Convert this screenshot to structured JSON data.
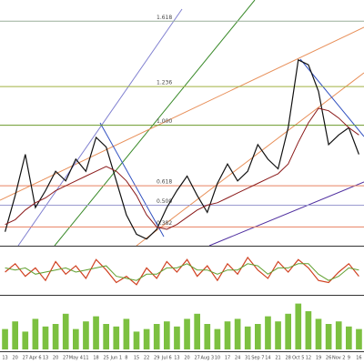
{
  "chart_data": [
    {
      "type": "line",
      "categories": [
        "13",
        "20",
        "27",
        "Apr 6",
        "13",
        "20",
        "27",
        "May 4",
        "11",
        "18",
        "25",
        "Jun 1",
        "8",
        "15",
        "22",
        "29",
        "Jul 6",
        "13",
        "20",
        "27",
        "Aug 3",
        "10",
        "17",
        "24",
        "31",
        "Sep 7",
        "14",
        "21",
        "28",
        "Oct 5",
        "12",
        "19",
        "26",
        "Nov 2",
        "9",
        "16"
      ],
      "ylim": [
        0,
        100
      ],
      "series": [
        {
          "name": "Price",
          "color": "#111111",
          "values": [
            5,
            20,
            37,
            15,
            22,
            30,
            26,
            35,
            30,
            44,
            40,
            26,
            12,
            4,
            2,
            6,
            15,
            22,
            28,
            20,
            13,
            25,
            33,
            26,
            30,
            41,
            35,
            31,
            48,
            76,
            74,
            63,
            41,
            45,
            48,
            37
          ]
        },
        {
          "name": "MA",
          "color": "#8b1a1a",
          "values": [
            8,
            10,
            14,
            17,
            19,
            22,
            24,
            26,
            28,
            30,
            32,
            30,
            26,
            20,
            12,
            7,
            6,
            8,
            11,
            14,
            16,
            17,
            19,
            21,
            23,
            25,
            27,
            29,
            33,
            42,
            50,
            56,
            55,
            52,
            48,
            45
          ]
        }
      ],
      "annotations": [
        {
          "text": "1.618",
          "y": 92,
          "color": "#9aaf9a"
        },
        {
          "text": "1.236",
          "y": 65,
          "color": "#a0b040"
        },
        {
          "text": "1.000",
          "y": 49,
          "color": "#6a9a2a"
        },
        {
          "text": "0.618",
          "y": 24,
          "color": "#e88060"
        },
        {
          "text": "0.500",
          "y": 16,
          "color": "#9a9ad0"
        },
        {
          "text": "0.382",
          "y": 7,
          "color": "#e88060"
        }
      ]
    },
    {
      "type": "line",
      "ylim": [
        0,
        100
      ],
      "series": [
        {
          "name": "%K",
          "color": "#d04020",
          "values": [
            50,
            70,
            40,
            60,
            30,
            75,
            45,
            65,
            35,
            80,
            55,
            25,
            40,
            20,
            60,
            35,
            75,
            50,
            80,
            40,
            65,
            30,
            70,
            45,
            85,
            55,
            35,
            75,
            50,
            80,
            60,
            30,
            25,
            50,
            70,
            40
          ]
        },
        {
          "name": "%D",
          "color": "#60a030",
          "values": [
            60,
            55,
            60,
            45,
            50,
            55,
            60,
            50,
            55,
            60,
            65,
            40,
            35,
            30,
            45,
            45,
            60,
            60,
            70,
            55,
            55,
            45,
            55,
            55,
            70,
            65,
            45,
            60,
            60,
            70,
            70,
            45,
            30,
            40,
            60,
            55
          ]
        }
      ]
    },
    {
      "type": "bar",
      "ylim": [
        0,
        100
      ],
      "color": "#7cc040",
      "values": [
        40,
        55,
        35,
        60,
        45,
        50,
        70,
        40,
        55,
        65,
        50,
        45,
        60,
        35,
        40,
        50,
        55,
        45,
        60,
        70,
        50,
        40,
        55,
        60,
        45,
        50,
        65,
        55,
        70,
        90,
        75,
        60,
        50,
        55,
        45,
        40
      ]
    }
  ]
}
